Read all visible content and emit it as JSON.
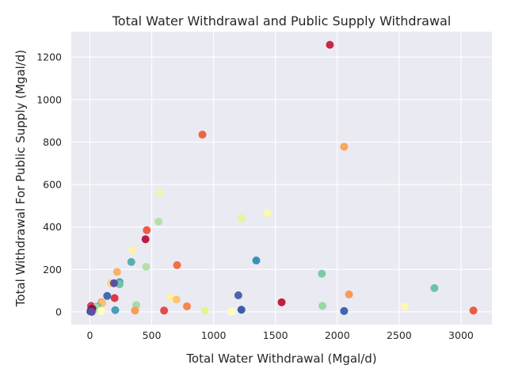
{
  "chart_data": {
    "type": "scatter",
    "title": "Total Water Withdrawal and Public Supply Withdrawal",
    "xlabel": "Total Water Withdrawal (Mgal/d)",
    "ylabel": "Total Withdrawal For Public Supply (Mgal/d)",
    "xlim": [
      -150,
      3250
    ],
    "ylim": [
      -60,
      1320
    ],
    "xticks": [
      0,
      500,
      1000,
      1500,
      2000,
      2500,
      3000
    ],
    "yticks": [
      0,
      200,
      400,
      600,
      800,
      1000,
      1200
    ],
    "grid": true,
    "background": "#eaeaf2",
    "points": [
      {
        "x": 1940,
        "y": 1258,
        "color": "#c2294a"
      },
      {
        "x": 910,
        "y": 835,
        "color": "#ee6445"
      },
      {
        "x": 2055,
        "y": 778,
        "color": "#fca55d"
      },
      {
        "x": 565,
        "y": 562,
        "color": "#eef8a8"
      },
      {
        "x": 1435,
        "y": 465,
        "color": "#fbf8b0"
      },
      {
        "x": 1225,
        "y": 440,
        "color": "#e6f598"
      },
      {
        "x": 555,
        "y": 425,
        "color": "#b3e0a6"
      },
      {
        "x": 460,
        "y": 385,
        "color": "#e95c47"
      },
      {
        "x": 450,
        "y": 342,
        "color": "#be1b45"
      },
      {
        "x": 345,
        "y": 290,
        "color": "#fdf2a6"
      },
      {
        "x": 1345,
        "y": 242,
        "color": "#3b92b9"
      },
      {
        "x": 335,
        "y": 235,
        "color": "#5aaeb1"
      },
      {
        "x": 705,
        "y": 220,
        "color": "#f46d43"
      },
      {
        "x": 455,
        "y": 212,
        "color": "#b5e1a6"
      },
      {
        "x": 220,
        "y": 188,
        "color": "#fdb063"
      },
      {
        "x": 1875,
        "y": 180,
        "color": "#7ccba5"
      },
      {
        "x": 170,
        "y": 135,
        "color": "#fdd380"
      },
      {
        "x": 240,
        "y": 140,
        "color": "#4aa3b4"
      },
      {
        "x": 240,
        "y": 130,
        "color": "#6fc4a5"
      },
      {
        "x": 195,
        "y": 135,
        "color": "#5e4fa2"
      },
      {
        "x": 2785,
        "y": 112,
        "color": "#6bc4a4"
      },
      {
        "x": 2095,
        "y": 82,
        "color": "#fa9b58"
      },
      {
        "x": 1200,
        "y": 78,
        "color": "#4e63aa"
      },
      {
        "x": 140,
        "y": 75,
        "color": "#3f6fae"
      },
      {
        "x": 200,
        "y": 65,
        "color": "#dc3a4b"
      },
      {
        "x": 650,
        "y": 68,
        "color": "#fef0a4"
      },
      {
        "x": 700,
        "y": 58,
        "color": "#fdc574"
      },
      {
        "x": 1550,
        "y": 45,
        "color": "#c0203f"
      },
      {
        "x": 95,
        "y": 45,
        "color": "#f88c51"
      },
      {
        "x": 100,
        "y": 42,
        "color": "#fdbe70"
      },
      {
        "x": 375,
        "y": 32,
        "color": "#a6dba4"
      },
      {
        "x": 1880,
        "y": 28,
        "color": "#9ad7a4"
      },
      {
        "x": 785,
        "y": 26,
        "color": "#f6864f"
      },
      {
        "x": 2545,
        "y": 26,
        "color": "#fdf8b4"
      },
      {
        "x": 60,
        "y": 25,
        "color": "#6cc3a5"
      },
      {
        "x": 10,
        "y": 28,
        "color": "#d53e4f"
      },
      {
        "x": 60,
        "y": 15,
        "color": "#9ad4a0"
      },
      {
        "x": 50,
        "y": 20,
        "color": "#a2d9a4"
      },
      {
        "x": 20,
        "y": 15,
        "color": "#8b1545"
      },
      {
        "x": 10,
        "y": 10,
        "color": "#9e0142"
      },
      {
        "x": 1225,
        "y": 10,
        "color": "#3b5fa5"
      },
      {
        "x": 205,
        "y": 8,
        "color": "#48a0b2"
      },
      {
        "x": 365,
        "y": 6,
        "color": "#fc9a58"
      },
      {
        "x": 600,
        "y": 6,
        "color": "#e44a4d"
      },
      {
        "x": 930,
        "y": 6,
        "color": "#e2f39a"
      },
      {
        "x": 1145,
        "y": 2,
        "color": "#fffdbc"
      },
      {
        "x": 2055,
        "y": 4,
        "color": "#4064ad"
      },
      {
        "x": 3100,
        "y": 6,
        "color": "#ea5b46"
      },
      {
        "x": 90,
        "y": 4,
        "color": "#ffffb8"
      },
      {
        "x": 5,
        "y": 2,
        "color": "#3f4c9a"
      },
      {
        "x": 15,
        "y": 0,
        "color": "#5e4fa2"
      }
    ]
  }
}
